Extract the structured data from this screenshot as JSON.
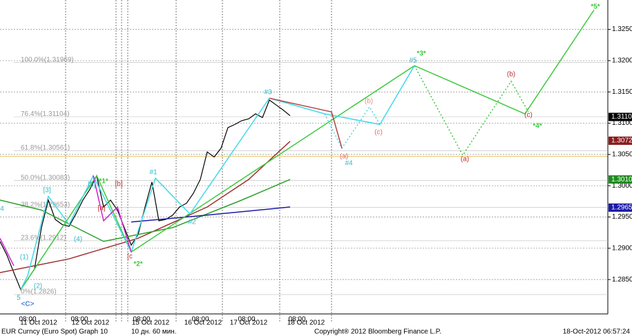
{
  "chart_data": {
    "type": "line",
    "xlim": [
      0,
      88
    ],
    "ylim": [
      1.2795,
      1.3297
    ],
    "yticks": [
      {
        "value": 1.325,
        "label": "1.3250"
      },
      {
        "value": 1.32,
        "label": "1.3200"
      },
      {
        "value": 1.315,
        "label": "1.3150"
      },
      {
        "value": 1.31,
        "label": "1.3100"
      },
      {
        "value": 1.305,
        "label": "1.3050"
      },
      {
        "value": 1.3,
        "label": "1.3000"
      },
      {
        "value": 1.295,
        "label": "1.2950"
      },
      {
        "value": 1.29,
        "label": "1.2900"
      },
      {
        "value": 1.285,
        "label": "1.2850"
      }
    ],
    "grid": true,
    "fib_levels": [
      {
        "value": 1.31969,
        "label": "100.0%(1.31969)"
      },
      {
        "value": 1.31104,
        "label": "76.4%(1.31104)"
      },
      {
        "value": 1.30561,
        "label": "61.8%(1.30561)"
      },
      {
        "value": 1.30083,
        "label": "50.0%(1.30083)"
      },
      {
        "value": 1.29653,
        "label": "38.2%(1.29653)"
      },
      {
        "value": 1.2912,
        "label": "23.6%(1.2912)"
      },
      {
        "value": 1.2826,
        "label": "0%(1.2826)"
      }
    ],
    "hline": {
      "value": 1.3047,
      "color": "#e0a000"
    },
    "price_tags": [
      {
        "value": 1.311,
        "label": "1.3110",
        "color": "#000000"
      },
      {
        "value": 1.3072,
        "label": "1.3072",
        "color": "#8b1a1a"
      },
      {
        "value": 1.301,
        "label": "1.3010",
        "color": "#1e8c1e"
      },
      {
        "value": 1.2965,
        "label": "1.2965",
        "color": "#1a1aa8"
      }
    ],
    "series": [
      {
        "color": "#000000",
        "dotted": false,
        "x": [
          0,
          1,
          2,
          3,
          4,
          5,
          6,
          7,
          8,
          9,
          10,
          11,
          12,
          13,
          14,
          15,
          16,
          17,
          18,
          19,
          20,
          21,
          22,
          23,
          24,
          25,
          26,
          27,
          28,
          29,
          30,
          31,
          32,
          33,
          34,
          35,
          36,
          37,
          38,
          39,
          40,
          41,
          42
        ],
        "values": [
          1.2911,
          1.2889,
          1.2861,
          1.2834,
          1.285,
          1.2867,
          1.2933,
          1.2977,
          1.2946,
          1.2938,
          1.2935,
          1.2955,
          1.2977,
          1.2994,
          1.3016,
          1.2966,
          1.2977,
          1.2961,
          1.2933,
          1.2905,
          1.2922,
          1.2966,
          1.3006,
          1.2944,
          1.2946,
          1.2953,
          1.2966,
          1.2972,
          1.2988,
          1.301,
          1.3054,
          1.3046,
          1.306,
          1.3093,
          1.3098,
          1.3104,
          1.3107,
          1.3115,
          1.3109,
          1.3137,
          1.3129,
          1.3121,
          1.3112
        ]
      },
      {
        "color": "#a03030",
        "dotted": false,
        "x": [
          0,
          10,
          20,
          30,
          36,
          42
        ],
        "values": [
          1.2861,
          1.2883,
          1.2916,
          1.2966,
          1.301,
          1.3071
        ]
      },
      {
        "color": "#2ca02c",
        "dotted": false,
        "x": [
          0,
          6,
          15,
          25,
          35,
          42
        ],
        "values": [
          1.2977,
          1.2961,
          1.2911,
          1.2933,
          1.2977,
          1.301
        ]
      },
      {
        "color": "#1a1aa8",
        "dotted": false,
        "x": [
          19,
          30,
          42
        ],
        "values": [
          1.2942,
          1.2953,
          1.2966
        ]
      },
      {
        "color": "#3cc83c",
        "dotted": false,
        "x": [
          3,
          14,
          19,
          60,
          76,
          86
        ],
        "values": [
          1.2834,
          1.3016,
          1.2894,
          1.3192,
          1.3115,
          1.3281
        ]
      },
      {
        "color": "#3cc83c",
        "dotted": true,
        "x": [
          60,
          67,
          74,
          76.5
        ],
        "values": [
          1.3192,
          1.3049,
          1.3167,
          1.3118
        ]
      },
      {
        "color": "#40d8e8",
        "dotted": false,
        "x": [
          3,
          4,
          7,
          10,
          13.5,
          19,
          22.5,
          27.5,
          39,
          47,
          55,
          60
        ],
        "values": [
          1.2834,
          1.2856,
          1.2983,
          1.2938,
          1.3016,
          1.2894,
          1.3012,
          1.2955,
          1.314,
          1.3115,
          1.3098,
          1.3192
        ]
      },
      {
        "color": "#40d8e8",
        "dotted": true,
        "x": [
          47,
          49.5,
          53.5,
          55
        ],
        "values": [
          1.3115,
          1.306,
          1.3126,
          1.3098
        ]
      },
      {
        "color": "#b04040",
        "dotted": false,
        "x": [
          39,
          48,
          49.5
        ],
        "values": [
          1.314,
          1.3118,
          1.306
        ]
      },
      {
        "color": "#d020d0",
        "dotted": false,
        "x": [
          0,
          2,
          8,
          13.5,
          15,
          17,
          19
        ],
        "values": [
          1.2916,
          1.2872,
          null,
          1.3016,
          1.2944,
          1.2966,
          1.2894
        ]
      }
    ],
    "annotations": [
      {
        "text": "*1*",
        "color": "#3cc83c"
      },
      {
        "text": "*2*",
        "color": "#3cc83c"
      },
      {
        "text": "*3*",
        "color": "#3cc83c"
      },
      {
        "text": "*4*",
        "color": "#3cc83c"
      },
      {
        "text": "*5*",
        "color": "#3cc83c"
      },
      {
        "text": "<C>",
        "color": "#5080e0"
      },
      {
        "text": "#1",
        "color": "#30b8c8"
      },
      {
        "text": "#2",
        "color": "#30b8c8"
      },
      {
        "text": "#3",
        "color": "#30b8c8"
      },
      {
        "text": "#4",
        "color": "#30b8c8"
      },
      {
        "text": "#5",
        "color": "#30b8c8"
      },
      {
        "text": "[5]",
        "color": "#30b8c8"
      },
      {
        "text": "[3]",
        "color": "#30b8c8"
      },
      {
        "text": "(4)",
        "color": "#30b8c8"
      },
      {
        "text": "(1)",
        "color": "#30b8c8"
      },
      {
        "text": "(2)",
        "color": "#30b8c8"
      },
      {
        "text": "5",
        "color": "#30b8c8"
      },
      {
        "text": "4",
        "color": "#30b8c8"
      },
      {
        "text": "[a]",
        "color": "#c03030"
      },
      {
        "text": "[b]",
        "color": "#c03030"
      },
      {
        "text": "[c",
        "color": "#c03030"
      },
      {
        "text": "(b)",
        "color": "#e09080"
      },
      {
        "text": "(c)",
        "color": "#e07060"
      },
      {
        "text": "(a)",
        "color": "#e07060"
      },
      {
        "text": "(a)",
        "color": "#c03030"
      },
      {
        "text": "(b)",
        "color": "#c03030"
      },
      {
        "text": "(c)",
        "color": "#c03030"
      }
    ],
    "time_labels": [
      "08:00",
      "08:00",
      "08:00",
      "08:00",
      "08:00",
      "08:00"
    ],
    "date_labels": [
      "11 Oct 2012",
      "12 Oct 2012",
      "15 Oct 2012",
      "16 Oct 2012",
      "17 Oct 2012",
      "18 Oct 2012"
    ],
    "footer": {
      "security": "EUR Curncy (Euro Spot) Graph 10",
      "period": "10 дн. 60 мин.",
      "copyright": "Copyright® 2012 Bloomberg Finance L.P.",
      "timestamp": "18-Oct-2012 06:57:24"
    }
  }
}
